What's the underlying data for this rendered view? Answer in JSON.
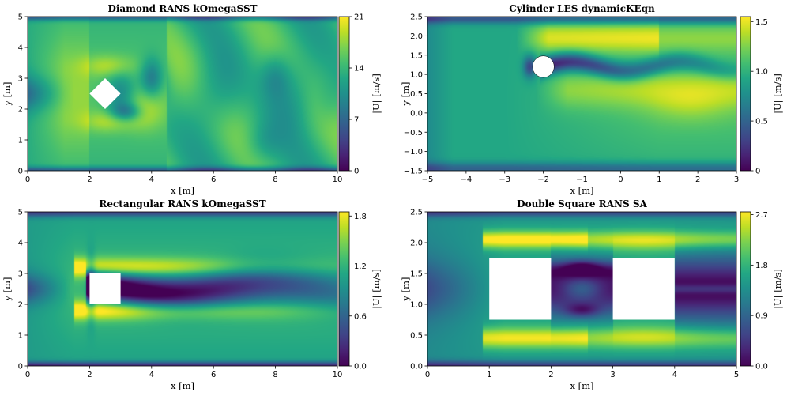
{
  "chart_data": [
    {
      "type": "heatmap",
      "title": "Diamond RANS kOmegaSST",
      "xlabel": "x [m]",
      "ylabel": "y [m]",
      "xlim": [
        0,
        10
      ],
      "ylim": [
        0,
        5
      ],
      "xticks": [
        0,
        2,
        4,
        6,
        8,
        10
      ],
      "yticks": [
        0,
        1,
        2,
        3,
        4,
        5
      ],
      "colorbar": {
        "label": "|U| [m/s]",
        "min": 0,
        "max": 21,
        "ticks": [
          "0",
          "7",
          "14",
          "21"
        ],
        "tickvals": [
          0,
          7,
          14,
          21
        ]
      },
      "obstacle": {
        "shape": "diamond",
        "center": [
          2.5,
          2.5
        ],
        "half_diagonal": 0.5
      },
      "field": "diamond"
    },
    {
      "type": "heatmap",
      "title": "Cylinder LES dynamicKEqn",
      "xlabel": "x [m]",
      "ylabel": "y [m]",
      "xlim": [
        -5,
        3
      ],
      "ylim": [
        -1.5,
        2.5
      ],
      "xticks": [
        -5,
        -4,
        -3,
        -2,
        -1,
        0,
        1,
        2,
        3
      ],
      "yticks": [
        -1.5,
        -1.0,
        -0.5,
        0.0,
        0.5,
        1.0,
        1.5,
        2.0,
        2.5
      ],
      "xtick_labels": [
        "−5",
        "−4",
        "−3",
        "−2",
        "−1",
        "0",
        "1",
        "2",
        "3"
      ],
      "ytick_labels": [
        "−1.5",
        "−1.0",
        "−0.5",
        "0.0",
        "0.5",
        "1.0",
        "1.5",
        "2.0",
        "2.5"
      ],
      "colorbar": {
        "label": "|U| [m/s]",
        "min": 0,
        "max": 1.55,
        "ticks": [
          "0",
          "0.5",
          "1.0",
          "1.5"
        ],
        "tickvals": [
          0,
          0.5,
          1.0,
          1.5
        ]
      },
      "obstacle": {
        "shape": "circle",
        "center": [
          -2.0,
          1.2
        ],
        "radius": 0.28
      },
      "field": "cylinder"
    },
    {
      "type": "heatmap",
      "title": "Rectangular RANS kOmegaSST",
      "xlabel": "x [m]",
      "ylabel": "y [m]",
      "xlim": [
        0,
        10
      ],
      "ylim": [
        0,
        5
      ],
      "xticks": [
        0,
        2,
        4,
        6,
        8,
        10
      ],
      "yticks": [
        0,
        1,
        2,
        3,
        4,
        5
      ],
      "colorbar": {
        "label": "|U| [m/s]",
        "min": 0,
        "max": 1.85,
        "ticks": [
          "0.0",
          "0.6",
          "1.2",
          "1.8"
        ],
        "tickvals": [
          0,
          0.6,
          1.2,
          1.8
        ]
      },
      "obstacle": {
        "shape": "rect",
        "x0": 2,
        "y0": 2,
        "x1": 3,
        "y1": 3
      },
      "field": "rect"
    },
    {
      "type": "heatmap",
      "title": "Double Square RANS SA",
      "xlabel": "x [m]",
      "ylabel": "y [m]",
      "xlim": [
        0,
        5
      ],
      "ylim": [
        0,
        2.5
      ],
      "xticks": [
        0,
        1,
        2,
        3,
        4,
        5
      ],
      "yticks": [
        0,
        0.5,
        1.0,
        1.5,
        2.0,
        2.5
      ],
      "ytick_labels": [
        "0.0",
        "0.5",
        "1.0",
        "1.5",
        "2.0",
        "2.5"
      ],
      "colorbar": {
        "label": "|U| [m/s]",
        "min": 0,
        "max": 2.75,
        "ticks": [
          "0.0",
          "0.9",
          "1.8",
          "2.7"
        ],
        "tickvals": [
          0,
          0.9,
          1.8,
          2.7
        ]
      },
      "obstacles": [
        {
          "shape": "rect",
          "x0": 1,
          "y0": 0.75,
          "x1": 2,
          "y1": 1.75
        },
        {
          "shape": "rect",
          "x0": 3,
          "y0": 0.75,
          "x1": 4,
          "y1": 1.75
        }
      ],
      "field": "double"
    }
  ]
}
